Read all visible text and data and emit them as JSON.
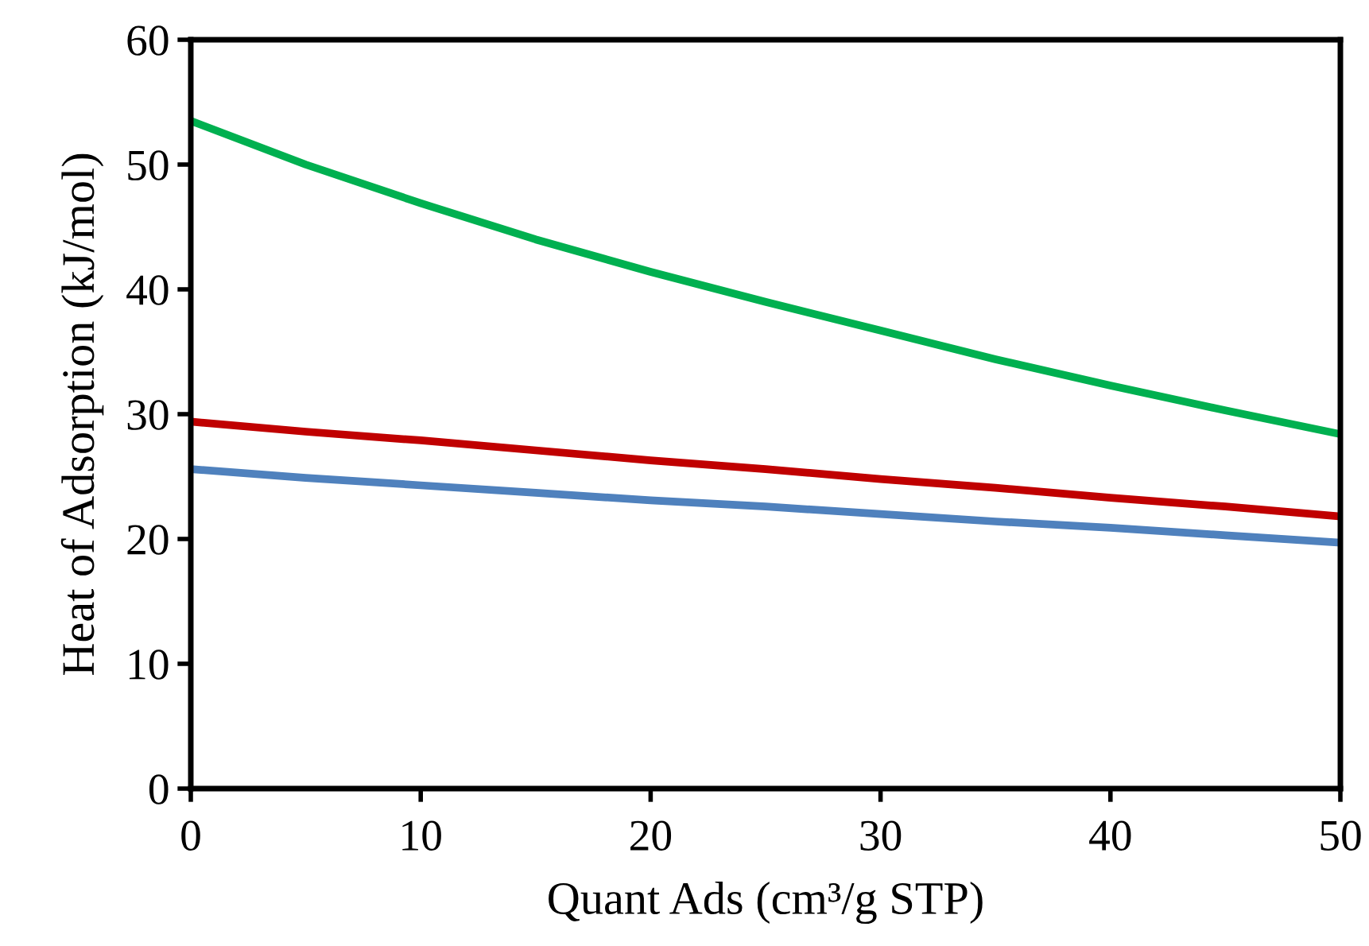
{
  "chart_data": {
    "type": "line",
    "xlabel": "Quant Ads (cm³/g STP)",
    "ylabel": "Heat of Adsorption (kJ/mol)",
    "x": [
      0,
      5,
      10,
      15,
      20,
      25,
      30,
      35,
      40,
      45,
      50
    ],
    "xlim": [
      0,
      50
    ],
    "xticks": [
      0,
      10,
      20,
      30,
      40,
      50
    ],
    "ylim": [
      0,
      60
    ],
    "yticks": [
      0,
      10,
      20,
      30,
      40,
      50,
      60
    ],
    "grid": false,
    "legend": false,
    "marker": "none",
    "line_style": "solid",
    "series": [
      {
        "color": "#00b050",
        "values": [
          53.5,
          50.0,
          46.9,
          44.0,
          41.4,
          39.0,
          36.7,
          34.4,
          32.3,
          30.3,
          28.4
        ]
      },
      {
        "color": "#c00000",
        "values": [
          29.4,
          28.6,
          27.9,
          27.1,
          26.3,
          25.6,
          24.8,
          24.1,
          23.3,
          22.6,
          21.8
        ]
      },
      {
        "color": "#4f81bd",
        "values": [
          25.6,
          24.9,
          24.3,
          23.7,
          23.1,
          22.6,
          22.0,
          21.4,
          20.9,
          20.3,
          19.7
        ]
      }
    ]
  }
}
